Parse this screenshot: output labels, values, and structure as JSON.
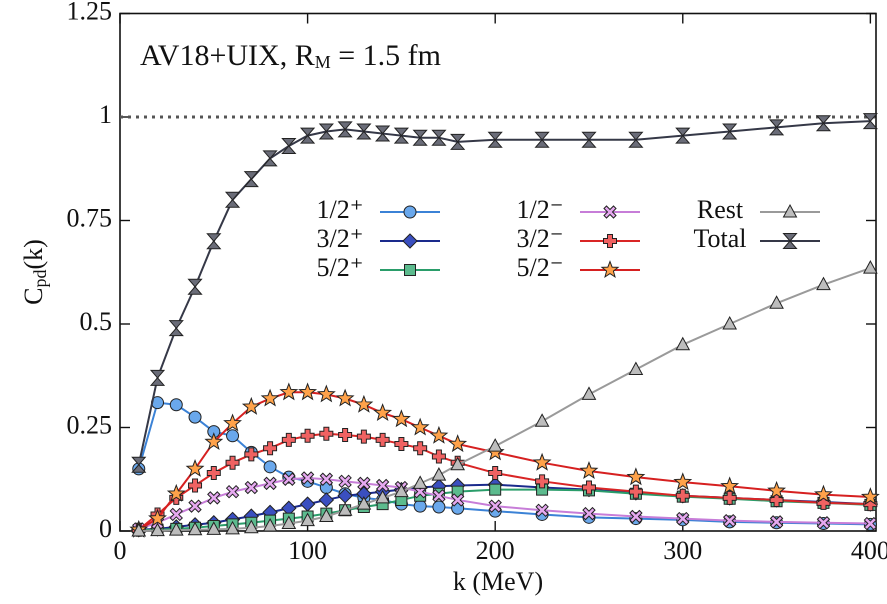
{
  "chart_data": {
    "type": "line",
    "annotation": {
      "text": "AV18+UIX, R",
      "sub": "M",
      "rest": " = 1.5 fm"
    },
    "xlabel": "k (MeV)",
    "ylabel": {
      "text": "C",
      "sub": "pd",
      "rest": "(k)"
    },
    "x": [
      10,
      20,
      30,
      40,
      50,
      60,
      70,
      80,
      90,
      100,
      110,
      120,
      130,
      140,
      150,
      160,
      170,
      180,
      200,
      225,
      250,
      275,
      300,
      325,
      350,
      375,
      400
    ],
    "xlim": [
      0,
      403
    ],
    "ylim": [
      0,
      1.25
    ],
    "xticks": [
      0,
      100,
      200,
      300,
      400
    ],
    "yticks": [
      0,
      0.25,
      0.5,
      0.75,
      1,
      1.25
    ],
    "ref_line": 1,
    "series": [
      {
        "name": "1/2⁺",
        "color": "#3b82d6",
        "fill": "#6aa8ec",
        "marker": "circle",
        "values": [
          0.15,
          0.31,
          0.305,
          0.275,
          0.24,
          0.23,
          0.19,
          0.155,
          0.13,
          0.12,
          0.105,
          0.09,
          0.08,
          0.075,
          0.065,
          0.06,
          0.058,
          0.055,
          0.048,
          0.04,
          0.033,
          0.03,
          0.027,
          0.022,
          0.02,
          0.018,
          0.016
        ]
      },
      {
        "name": "3/2⁺",
        "color": "#1a2a8c",
        "fill": "#3a4fc0",
        "marker": "diamond",
        "values": [
          0.003,
          0.005,
          0.01,
          0.015,
          0.02,
          0.028,
          0.036,
          0.045,
          0.055,
          0.065,
          0.075,
          0.085,
          0.09,
          0.095,
          0.1,
          0.105,
          0.108,
          0.11,
          0.112,
          0.105,
          0.1,
          0.092,
          0.085,
          0.08,
          0.075,
          0.07,
          0.065
        ]
      },
      {
        "name": "5/2⁺",
        "color": "#2a9d6a",
        "fill": "#5cbb8e",
        "marker": "square",
        "values": [
          0.002,
          0.003,
          0.005,
          0.008,
          0.012,
          0.016,
          0.02,
          0.025,
          0.03,
          0.035,
          0.042,
          0.05,
          0.058,
          0.065,
          0.075,
          0.085,
          0.09,
          0.095,
          0.1,
          0.1,
          0.098,
          0.09,
          0.083,
          0.078,
          0.072,
          0.068,
          0.063
        ]
      },
      {
        "name": "1/2⁻",
        "color": "#c77dd8",
        "fill": "#e6a9f0",
        "marker": "cross",
        "values": [
          0.005,
          0.02,
          0.04,
          0.06,
          0.08,
          0.095,
          0.105,
          0.115,
          0.125,
          0.128,
          0.125,
          0.12,
          0.115,
          0.11,
          0.105,
          0.095,
          0.085,
          0.075,
          0.06,
          0.05,
          0.042,
          0.035,
          0.03,
          0.025,
          0.022,
          0.02,
          0.018
        ]
      },
      {
        "name": "3/2⁻",
        "color": "#d92525",
        "fill": "#f06262",
        "marker": "plus",
        "values": [
          0.003,
          0.04,
          0.08,
          0.11,
          0.14,
          0.165,
          0.185,
          0.2,
          0.22,
          0.23,
          0.235,
          0.232,
          0.228,
          0.22,
          0.21,
          0.2,
          0.18,
          0.165,
          0.14,
          0.12,
          0.105,
          0.095,
          0.085,
          0.08,
          0.075,
          0.068,
          0.065
        ]
      },
      {
        "name": "5/2⁻",
        "color": "#d62020",
        "fill": "#ffa24a",
        "marker": "star",
        "values": [
          0.003,
          0.03,
          0.09,
          0.15,
          0.215,
          0.26,
          0.3,
          0.32,
          0.335,
          0.335,
          0.33,
          0.32,
          0.305,
          0.285,
          0.27,
          0.25,
          0.23,
          0.21,
          0.19,
          0.165,
          0.145,
          0.13,
          0.118,
          0.108,
          0.097,
          0.088,
          0.082
        ]
      },
      {
        "name": "Rest",
        "color": "#9a9a9a",
        "fill": "#bdbdbd",
        "marker": "triangle",
        "values": [
          0,
          0.001,
          0.002,
          0.003,
          0.004,
          0.005,
          0.008,
          0.012,
          0.018,
          0.025,
          0.035,
          0.05,
          0.065,
          0.08,
          0.095,
          0.115,
          0.135,
          0.16,
          0.205,
          0.265,
          0.33,
          0.39,
          0.45,
          0.5,
          0.55,
          0.595,
          0.635
        ]
      },
      {
        "name": "Total",
        "color": "#353847",
        "fill": "#6a6c78",
        "marker": "hourglass",
        "values": [
          0.16,
          0.37,
          0.49,
          0.59,
          0.7,
          0.8,
          0.85,
          0.9,
          0.93,
          0.955,
          0.965,
          0.97,
          0.965,
          0.96,
          0.955,
          0.95,
          0.95,
          0.94,
          0.945,
          0.945,
          0.945,
          0.945,
          0.955,
          0.965,
          0.975,
          0.985,
          0.99
        ]
      }
    ]
  }
}
